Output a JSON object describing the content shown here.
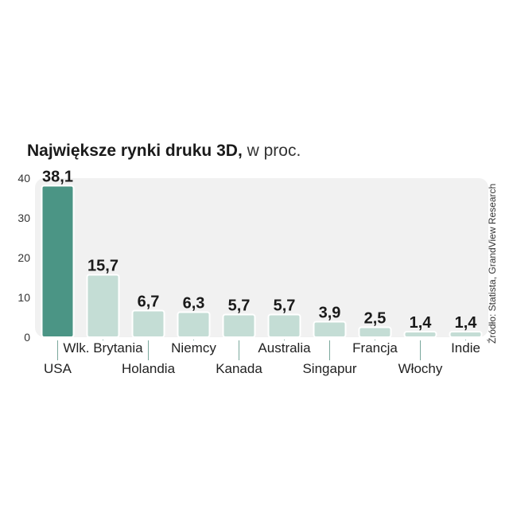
{
  "title": {
    "main": "Największe rynki druku 3D,",
    "unit": "w proc."
  },
  "source": "Źródło: Statista, GrandView Research",
  "colors": {
    "highlight_bar": "#4b9585",
    "bar": "#c4ddd5",
    "bar_stroke": "#ffffff",
    "plot_background": "#f1f1f1",
    "leader_line": "#7aa89c",
    "text": "#1a1a1a"
  },
  "chart_data": {
    "type": "bar",
    "title": "Największe rynki druku 3D, w proc.",
    "categories": [
      "USA",
      "Wlk. Brytania",
      "Holandia",
      "Niemcy",
      "Kanada",
      "Australia",
      "Singapur",
      "Francja",
      "Włochy",
      "Indie"
    ],
    "values": [
      38.1,
      15.7,
      6.7,
      6.3,
      5.7,
      5.7,
      3.9,
      2.5,
      1.4,
      1.4
    ],
    "value_labels": [
      "38,1",
      "15,7",
      "6,7",
      "6,3",
      "5,7",
      "5,7",
      "3,9",
      "2,5",
      "1,4",
      "1,4"
    ],
    "highlight_index": 0,
    "ylim": [
      0,
      40
    ],
    "yticks": [
      0,
      10,
      20,
      30,
      40
    ],
    "label_rows": [
      "low",
      "high",
      "low",
      "high",
      "low",
      "high",
      "low",
      "high",
      "low",
      "high"
    ],
    "grid": false,
    "legend": "none"
  }
}
